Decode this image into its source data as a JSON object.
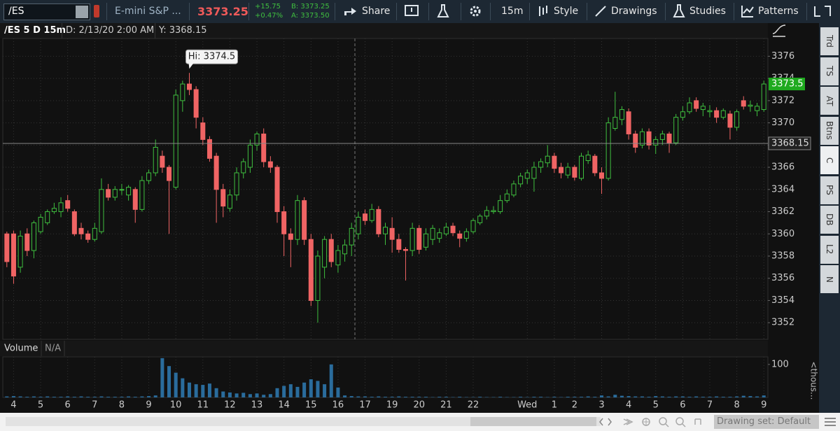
{
  "toolbar": {
    "symbol": "/ES",
    "description": "E-mini S&P ...",
    "last": "3373.25",
    "change": "+15.75",
    "change_pct": "+0.47%",
    "bid": "B: 3373.25",
    "ask": "A: 3373.50",
    "buttons": [
      "Share",
      "15m",
      "Style",
      "Drawings",
      "Studies",
      "Patterns"
    ]
  },
  "chart_header": {
    "symbol": "/ES 5 D 15m",
    "date": "D: 2/13/20 2:00 AM",
    "y": "Y: 3368.15"
  },
  "chart_data": [
    {
      "type": "candlestick",
      "high_label": "Hi: 3374.5",
      "last_price": 3373.5,
      "crosshair_price": 3368.15,
      "up_color": "#3fbf3f",
      "down_color": "#f06464",
      "last_color": "#1faa1f",
      "xlim": [
        -0.6,
        112.6
      ],
      "ylim": [
        3350.5,
        3377.6
      ],
      "yticks": [
        3352,
        3354,
        3356,
        3358,
        3360,
        3362,
        3364,
        3366,
        3368,
        3370,
        3372,
        3374,
        3376
      ],
      "grid": true,
      "open": [
        3360,
        3360,
        3357,
        3360,
        3358.5,
        3360.2,
        3361,
        3362,
        3362,
        3363,
        3362,
        3360.5,
        3360,
        3359.5,
        3360.2,
        3364,
        3363.3,
        3364,
        3363.5,
        3364,
        3362.2,
        3364.8,
        3365.5,
        3367,
        3366,
        3364.2,
        3372,
        3373.5,
        3373,
        3370,
        3368.5,
        3367,
        3364,
        3362.3,
        3363.5,
        3365.5,
        3366,
        3368,
        3369,
        3366.5,
        3366,
        3362,
        3360,
        3359.5,
        3363,
        3359.5,
        3354,
        3357,
        3359.5,
        3357.2,
        3358.2,
        3359,
        3360,
        3361.8,
        3361.2,
        3362.2,
        3360,
        3360.5,
        3359.5,
        3358.6,
        3358.5,
        3360.5,
        3358.8,
        3359.5,
        3359.6,
        3360,
        3360.7,
        3360,
        3359.6,
        3360.2,
        3361,
        3361.6,
        3362,
        3362,
        3363,
        3363.5,
        3364.5,
        3365,
        3365,
        3366,
        3366.4,
        3367,
        3366,
        3365.3,
        3366,
        3365,
        3366.6,
        3367,
        3365.5,
        3365,
        3369.5,
        3370.3,
        3371,
        3369,
        3368,
        3369.2,
        3368,
        3368.5,
        3369,
        3368.2,
        3370.5,
        3371,
        3372,
        3371.2,
        3371,
        3371.1,
        3370.5,
        3370.8,
        3369.6,
        3372,
        3371.5,
        3371.1,
        3371.2
      ],
      "high": [
        3360.2,
        3360.3,
        3360.3,
        3360.5,
        3361.2,
        3361.8,
        3362.2,
        3362.8,
        3363.3,
        3363.5,
        3362.2,
        3361,
        3360.3,
        3361,
        3365,
        3364.5,
        3364.3,
        3364.5,
        3364.4,
        3364.2,
        3365.2,
        3365.8,
        3368.5,
        3367.5,
        3366.2,
        3373,
        3373.8,
        3374.5,
        3373.3,
        3370.5,
        3368.8,
        3367.3,
        3364.5,
        3364,
        3366,
        3366.8,
        3368.5,
        3369.2,
        3369.5,
        3367,
        3366.2,
        3362.5,
        3360.5,
        3363.5,
        3363.3,
        3360,
        3358.5,
        3359.8,
        3360,
        3359,
        3359.5,
        3361,
        3362,
        3362.2,
        3362.7,
        3362.5,
        3361,
        3361.5,
        3360,
        3358.8,
        3361,
        3360.8,
        3360.5,
        3360.8,
        3360.5,
        3361,
        3361,
        3360.3,
        3360.5,
        3361.4,
        3361.8,
        3362.5,
        3362.5,
        3363.5,
        3364,
        3364.8,
        3365.5,
        3365.8,
        3366.5,
        3366.8,
        3368,
        3367.3,
        3366.4,
        3366.4,
        3366.2,
        3367.3,
        3367.5,
        3367.2,
        3366,
        3370.5,
        3372.8,
        3371.5,
        3371.3,
        3369.3,
        3369.5,
        3369.5,
        3368.8,
        3369.3,
        3369.2,
        3370.8,
        3371.5,
        3372.3,
        3372.3,
        3371.8,
        3371.6,
        3371.4,
        3371.3,
        3371.1,
        3371.2,
        3372.4,
        3372,
        3371.8,
        3373.8
      ],
      "low": [
        3357,
        3355.5,
        3356.5,
        3358,
        3357.8,
        3360,
        3360.8,
        3361.8,
        3361.5,
        3362,
        3359.8,
        3359.5,
        3359.2,
        3359.3,
        3360,
        3363,
        3363,
        3363.5,
        3363,
        3361,
        3362,
        3364.5,
        3365.2,
        3365.5,
        3360,
        3364,
        3371,
        3372.5,
        3369.5,
        3368,
        3366.5,
        3361,
        3361.5,
        3362,
        3363,
        3365,
        3365.5,
        3367.5,
        3366,
        3365.5,
        3361,
        3358,
        3357,
        3359,
        3359,
        3353.5,
        3352,
        3356,
        3357,
        3356.5,
        3357.5,
        3358,
        3359.5,
        3360.8,
        3361,
        3359.7,
        3359,
        3358.3,
        3358.3,
        3355.8,
        3358,
        3358.2,
        3358.5,
        3359,
        3359.2,
        3359.8,
        3359.8,
        3358.8,
        3359.3,
        3360,
        3360.8,
        3361.3,
        3361.8,
        3361.8,
        3362.8,
        3363.3,
        3364.2,
        3364.5,
        3363.8,
        3365.5,
        3366,
        3365.5,
        3365,
        3365,
        3364.8,
        3364.8,
        3366.3,
        3365.2,
        3363.6,
        3364.8,
        3369.3,
        3369.8,
        3368.5,
        3367.3,
        3367.7,
        3367.6,
        3367.2,
        3368,
        3367.3,
        3368,
        3370.2,
        3370.8,
        3371,
        3370.6,
        3370.5,
        3370,
        3370.3,
        3368.5,
        3369.3,
        3371.2,
        3371,
        3370.6,
        3371
      ],
      "close": [
        3357.5,
        3356.2,
        3359.8,
        3358.5,
        3361,
        3361.5,
        3362,
        3362.3,
        3362.8,
        3362.3,
        3360,
        3360,
        3359.5,
        3360.5,
        3364,
        3363.3,
        3364,
        3364,
        3364.2,
        3362.2,
        3364.8,
        3365.5,
        3367.8,
        3366,
        3364.8,
        3372.5,
        3373.5,
        3373,
        3370.5,
        3368.5,
        3366.8,
        3364,
        3362.5,
        3363.5,
        3365.5,
        3366.5,
        3368,
        3369,
        3366.5,
        3366,
        3362,
        3360,
        3359.5,
        3363,
        3359.5,
        3354,
        3358,
        3359.5,
        3357.5,
        3358.5,
        3359,
        3360.5,
        3361.5,
        3361.2,
        3362.2,
        3360,
        3360.6,
        3359.5,
        3358.6,
        3358.5,
        3360.5,
        3358.6,
        3360,
        3360.5,
        3360.1,
        3360.6,
        3360.1,
        3359.6,
        3360.2,
        3361.2,
        3361.6,
        3362.1,
        3362.1,
        3363,
        3363.6,
        3364.5,
        3365.2,
        3365.5,
        3366,
        3366.5,
        3367,
        3365.9,
        3365.5,
        3366,
        3365.1,
        3367,
        3367.1,
        3365.5,
        3365,
        3370,
        3370.5,
        3371.2,
        3369,
        3367.8,
        3369.2,
        3368,
        3368.5,
        3369,
        3368.2,
        3370.5,
        3371,
        3371.8,
        3371.3,
        3371.5,
        3371.1,
        3370.5,
        3371.1,
        3369.6,
        3371,
        3371.5,
        3371.6,
        3371.5,
        3373.5
      ]
    },
    {
      "type": "bar",
      "title": "Volume",
      "subtitle": "N/A",
      "unit_label": "<thous...",
      "color": "#2a6c9c",
      "xlim": [
        -0.6,
        112.6
      ],
      "ylim": [
        0,
        123
      ],
      "yticks": [
        100
      ],
      "xticks": [
        {
          "value": 1,
          "label": "4"
        },
        {
          "value": 5,
          "label": "5"
        },
        {
          "value": 9,
          "label": "6"
        },
        {
          "value": 13,
          "label": "7"
        },
        {
          "value": 17,
          "label": "8"
        },
        {
          "value": 21,
          "label": "9"
        },
        {
          "value": 25,
          "label": "10"
        },
        {
          "value": 29,
          "label": "11"
        },
        {
          "value": 33,
          "label": "12"
        },
        {
          "value": 37,
          "label": "13"
        },
        {
          "value": 41,
          "label": "14"
        },
        {
          "value": 45,
          "label": "15"
        },
        {
          "value": 49,
          "label": "16"
        },
        {
          "value": 53,
          "label": "17"
        },
        {
          "value": 57,
          "label": "19"
        },
        {
          "value": 61,
          "label": "20"
        },
        {
          "value": 65,
          "label": "21"
        },
        {
          "value": 69,
          "label": "22"
        },
        {
          "value": 77,
          "label": "Wed"
        },
        {
          "value": 81,
          "label": "1"
        },
        {
          "value": 84,
          "label": "2"
        },
        {
          "value": 88,
          "label": "3"
        },
        {
          "value": 92,
          "label": "4"
        },
        {
          "value": 96,
          "label": "5"
        },
        {
          "value": 100,
          "label": "6"
        },
        {
          "value": 104,
          "label": "7"
        },
        {
          "value": 108,
          "label": "8"
        },
        {
          "value": 112,
          "label": "9"
        }
      ],
      "values": [
        3,
        4,
        3,
        2,
        3,
        2,
        3,
        2,
        2,
        3,
        2,
        3,
        2,
        2,
        3,
        2,
        2,
        2,
        3,
        2,
        3,
        4,
        6,
        119,
        95,
        75,
        58,
        45,
        40,
        38,
        42,
        28,
        18,
        15,
        12,
        14,
        10,
        12,
        8,
        10,
        28,
        35,
        40,
        32,
        45,
        55,
        50,
        40,
        100,
        30,
        6,
        4,
        3,
        3,
        2,
        3,
        2,
        2,
        3,
        2,
        2,
        2,
        2,
        1,
        2,
        2,
        1,
        2,
        1,
        1,
        2,
        1,
        1,
        2,
        1,
        1,
        2,
        1,
        2,
        2,
        1,
        2,
        1,
        2,
        2,
        2,
        3,
        2,
        6,
        3,
        8,
        5,
        4,
        3,
        3,
        2,
        4,
        3,
        2,
        3,
        3,
        2,
        3,
        2,
        2,
        3,
        2,
        2,
        3,
        5,
        4,
        3,
        6
      ]
    }
  ],
  "sidebar": [
    "Trd",
    "TS",
    "AT",
    "Btns",
    "C",
    "PS",
    "DB",
    "L2",
    "N"
  ],
  "footer": {
    "drawing_set": "Drawing set: Default"
  }
}
